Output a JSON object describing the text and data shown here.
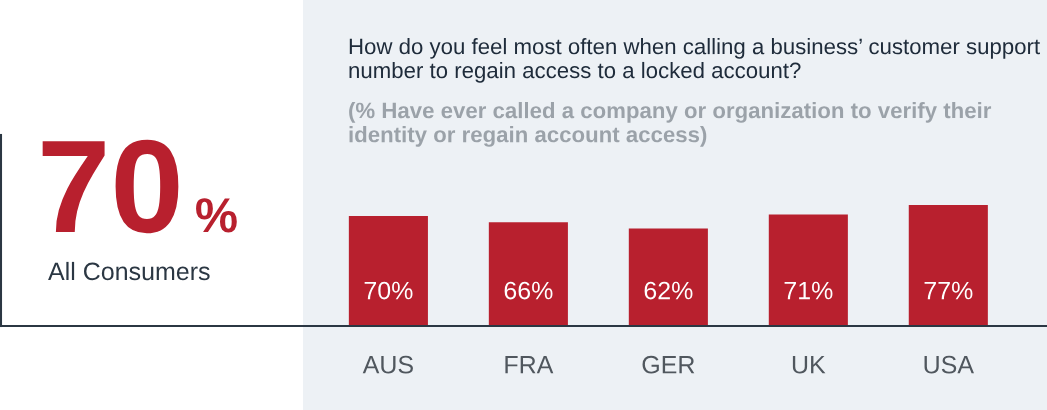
{
  "chart_data": [
    {
      "type": "other",
      "annotations": [
        "70",
        "%",
        "All Consumers"
      ]
    },
    {
      "type": "bar",
      "title": "How do you feel most often when calling a business’ customer support number to regain access to a locked account?",
      "subtitle": "(% Have ever called a company or organization to verify their identity or regain account access)",
      "categories": [
        "AUS",
        "FRA",
        "GER",
        "UK",
        "USA"
      ],
      "values": [
        70,
        66,
        62,
        71,
        77
      ],
      "color": "#b8202e",
      "value_labels": [
        "70%",
        "66%",
        "62%",
        "71%",
        "77%"
      ],
      "tick_labels": "x"
    }
  ]
}
